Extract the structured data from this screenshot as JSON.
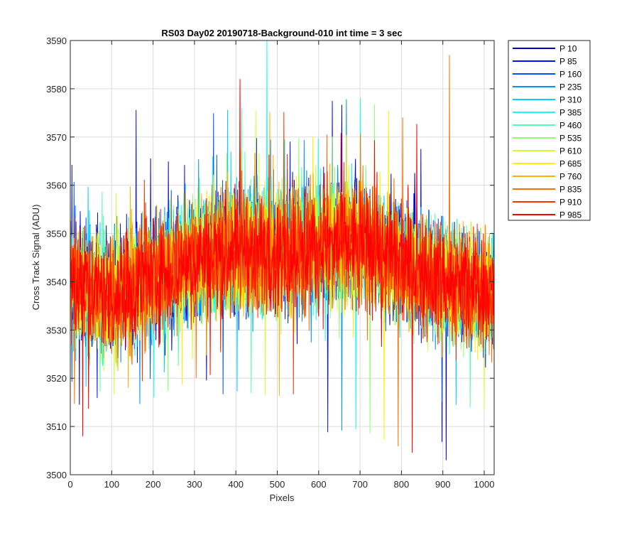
{
  "chart_data": {
    "type": "line",
    "title": "RS03 Day02 20190718-Background-010 int time = 3 sec",
    "xlabel": "Pixels",
    "ylabel": "Cross Track Signal (ADU)",
    "xlim": [
      0,
      1024
    ],
    "ylim": [
      3500,
      3590
    ],
    "xticks": [
      0,
      100,
      200,
      300,
      400,
      500,
      600,
      700,
      800,
      900,
      1000
    ],
    "yticks": [
      3500,
      3510,
      3520,
      3530,
      3540,
      3550,
      3560,
      3570,
      3580,
      3590
    ],
    "grid": true,
    "legend_position": "outside-top-right",
    "x_count": 1024,
    "profile": {
      "x": [
        0,
        100,
        200,
        300,
        400,
        500,
        600,
        700,
        800,
        900,
        1024
      ],
      "mean": [
        3540,
        3537,
        3541,
        3545,
        3547,
        3546,
        3547,
        3548,
        3544,
        3540,
        3538
      ],
      "noise_range": [
        -24,
        24
      ]
    },
    "series": [
      {
        "name": "P 10",
        "color": "#0000bf"
      },
      {
        "name": "P 85",
        "color": "#0010ff"
      },
      {
        "name": "P 160",
        "color": "#0050ff"
      },
      {
        "name": "P 235",
        "color": "#0090ff"
      },
      {
        "name": "P 310",
        "color": "#00cfff"
      },
      {
        "name": "P 385",
        "color": "#10ffef"
      },
      {
        "name": "P 460",
        "color": "#50ffaf"
      },
      {
        "name": "P 535",
        "color": "#90ff6f"
      },
      {
        "name": "P 610",
        "color": "#cfff30"
      },
      {
        "name": "P 685",
        "color": "#ffef00"
      },
      {
        "name": "P 760",
        "color": "#ffb000"
      },
      {
        "name": "P 835",
        "color": "#ff7000"
      },
      {
        "name": "P 910",
        "color": "#ff3000"
      },
      {
        "name": "P 985",
        "color": "#ff0000"
      }
    ],
    "notable_points": [
      {
        "x": 475,
        "y": 3590,
        "series": "P 385"
      },
      {
        "x": 916,
        "y": 3587,
        "series": "P 835"
      },
      {
        "x": 908,
        "y": 3503,
        "series": "P 10"
      },
      {
        "x": 410,
        "y": 3582,
        "series": "P 985"
      },
      {
        "x": 30,
        "y": 3508,
        "series": "P 985"
      }
    ]
  }
}
